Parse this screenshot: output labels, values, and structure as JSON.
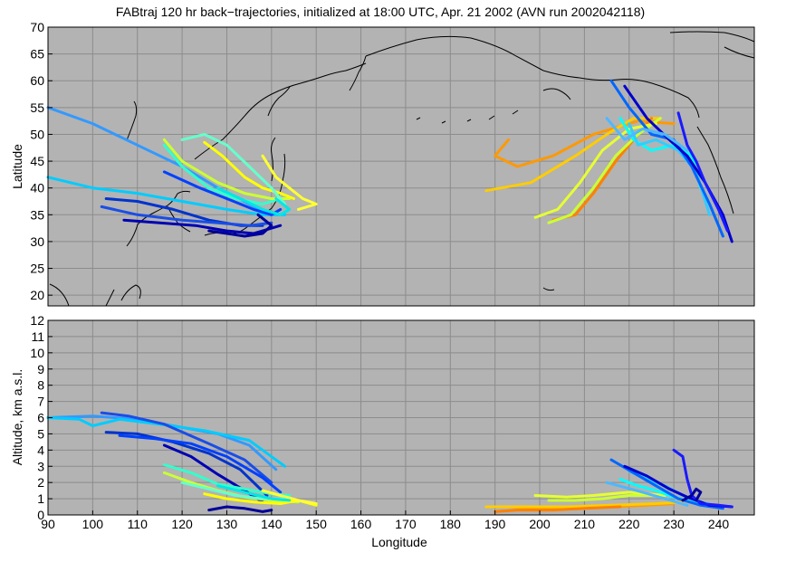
{
  "chart_data": [
    {
      "type": "line",
      "panel": "map",
      "title": "FABtraj 120 hr back−trajectories, initialized at 18:00 UTC, Apr. 21 2002 (AVN run 2002042118)",
      "xlabel": "",
      "ylabel": "Latitude",
      "xlim": [
        90,
        240
      ],
      "ylim": [
        18,
        70
      ],
      "xticks": [
        90,
        100,
        110,
        120,
        130,
        140,
        150,
        160,
        170,
        180,
        190,
        200,
        210,
        220,
        230,
        240
      ],
      "yticks": [
        20,
        25,
        30,
        35,
        40,
        45,
        50,
        55,
        60,
        65,
        70
      ],
      "ytick_labels": [
        "20",
        "25",
        "30",
        "35",
        "40",
        "45",
        "50",
        "55",
        "60",
        "65",
        "70"
      ],
      "grid": true,
      "background": "#b3b3b3",
      "series": [
        {
          "color": "#3399ff",
          "x": [
            90,
            100,
            110,
            120,
            128,
            135,
            140
          ],
          "y": [
            55,
            52,
            48,
            44,
            40,
            37,
            35
          ]
        },
        {
          "color": "#00ccff",
          "x": [
            90,
            100,
            110,
            120,
            130,
            138,
            143
          ],
          "y": [
            42,
            40,
            39,
            37.5,
            36,
            35,
            35
          ]
        },
        {
          "color": "#0033cc",
          "x": [
            103,
            110,
            118,
            126,
            133,
            138
          ],
          "y": [
            38,
            37.5,
            36,
            34,
            33,
            33
          ]
        },
        {
          "color": "#1a4de6",
          "x": [
            102,
            110,
            120,
            128,
            135,
            140
          ],
          "y": [
            36.5,
            35,
            34,
            33.5,
            33,
            33.5
          ]
        },
        {
          "color": "#0000b3",
          "x": [
            107,
            115,
            123,
            130,
            136,
            142
          ],
          "y": [
            34,
            33.5,
            33,
            32,
            31.5,
            33
          ]
        },
        {
          "color": "#000099",
          "x": [
            126,
            130,
            134,
            138,
            140,
            137
          ],
          "y": [
            32,
            31.5,
            31,
            31.5,
            33,
            35
          ]
        },
        {
          "color": "#0040ff",
          "x": [
            116,
            124,
            130,
            136,
            140,
            142
          ],
          "y": [
            43,
            40,
            38,
            36,
            35,
            36
          ]
        },
        {
          "color": "#33ffcc",
          "x": [
            116,
            120,
            126,
            132,
            138,
            142
          ],
          "y": [
            48,
            44,
            40,
            38,
            37,
            38
          ]
        },
        {
          "color": "#ccff33",
          "x": [
            116,
            120,
            128,
            134,
            140,
            144
          ],
          "y": [
            49,
            45,
            41,
            39,
            38,
            38
          ]
        },
        {
          "color": "#ffff00",
          "x": [
            125,
            129,
            134,
            138,
            142,
            145
          ],
          "y": [
            48.5,
            46,
            42,
            40,
            39,
            38
          ]
        },
        {
          "color": "#ffff33",
          "x": [
            138,
            141,
            144,
            147,
            150,
            146
          ],
          "y": [
            46,
            42,
            40,
            38,
            37,
            36
          ]
        },
        {
          "color": "#66ffcc",
          "x": [
            120,
            125,
            130,
            135,
            140,
            143
          ],
          "y": [
            49,
            50,
            48,
            44,
            40,
            37
          ]
        },
        {
          "color": "#00e6e6",
          "x": [
            128,
            133,
            138,
            142,
            144,
            141
          ],
          "y": [
            40,
            38,
            36,
            35,
            36,
            38
          ]
        },
        {
          "color": "#ff9900",
          "x": [
            193,
            190,
            195,
            203,
            212,
            222,
            230
          ],
          "y": [
            49,
            46,
            44,
            46,
            50,
            52.5,
            52
          ]
        },
        {
          "color": "#ffcc00",
          "x": [
            188,
            198,
            208,
            215,
            221,
            227
          ],
          "y": [
            39.5,
            41,
            46,
            50,
            53,
            53
          ]
        },
        {
          "color": "#ff8000",
          "x": [
            203,
            208,
            212,
            217,
            222,
            225
          ],
          "y": [
            34,
            35,
            39,
            45,
            50,
            53
          ]
        },
        {
          "color": "#ccff33",
          "x": [
            202,
            207,
            212,
            217,
            222,
            227
          ],
          "y": [
            33.5,
            35,
            40,
            46,
            50,
            53
          ]
        },
        {
          "color": "#e6ff33",
          "x": [
            199,
            204,
            209,
            214,
            220,
            226
          ],
          "y": [
            34.5,
            36,
            41,
            47,
            51,
            52
          ]
        },
        {
          "color": "#00ffff",
          "x": [
            218,
            221,
            225,
            230,
            234,
            236
          ],
          "y": [
            53,
            49,
            47,
            48,
            46,
            40
          ]
        },
        {
          "color": "#33ccff",
          "x": [
            220,
            222,
            226,
            231,
            235,
            238
          ],
          "y": [
            52,
            48,
            49,
            47,
            43,
            35
          ]
        },
        {
          "color": "#0066ff",
          "x": [
            216,
            220,
            225,
            230,
            234,
            238,
            241
          ],
          "y": [
            60,
            55,
            50,
            49,
            44,
            37,
            31
          ]
        },
        {
          "color": "#0000cc",
          "x": [
            219,
            224,
            229,
            233,
            237,
            241,
            243
          ],
          "y": [
            59,
            53,
            49,
            46,
            41,
            35,
            30
          ]
        },
        {
          "color": "#1a1aff",
          "x": [
            231,
            233,
            235,
            237,
            240,
            242
          ],
          "y": [
            54,
            48,
            45,
            41,
            36,
            32
          ]
        },
        {
          "color": "#4db8ff",
          "x": [
            215,
            219,
            223,
            228,
            233
          ],
          "y": [
            53,
            49,
            51,
            50,
            47
          ]
        }
      ]
    },
    {
      "type": "line",
      "panel": "altitude",
      "title": "",
      "xlabel": "Longitude",
      "ylabel": "Altitude, km a.s.l.",
      "xlim": [
        90,
        248
      ],
      "ylim": [
        0,
        12
      ],
      "xticks": [
        90,
        100,
        110,
        120,
        130,
        140,
        150,
        160,
        170,
        180,
        190,
        200,
        210,
        220,
        230,
        240
      ],
      "xtick_labels": [
        "90",
        "100",
        "110",
        "120",
        "130",
        "140",
        "150",
        "160",
        "170",
        "180",
        "190",
        "200",
        "210",
        "220",
        "230",
        "240"
      ],
      "yticks": [
        0,
        1,
        2,
        3,
        4,
        5,
        6,
        7,
        8,
        9,
        10,
        11,
        12
      ],
      "ytick_labels": [
        "0",
        "1",
        "2",
        "3",
        "4",
        "5",
        "6",
        "7",
        "8",
        "9",
        "10",
        "11",
        "12"
      ],
      "grid": true,
      "background": "#b3b3b3",
      "series": [
        {
          "color": "#3399ff",
          "x": [
            90,
            100,
            110,
            120,
            128,
            135,
            141
          ],
          "y": [
            6.0,
            6.1,
            5.9,
            5.4,
            5.0,
            4.3,
            2.8
          ]
        },
        {
          "color": "#00ccff",
          "x": [
            90,
            97,
            100,
            106,
            115,
            125,
            135,
            143
          ],
          "y": [
            6.0,
            5.9,
            5.5,
            5.9,
            5.6,
            5.2,
            4.6,
            3.0
          ]
        },
        {
          "color": "#1a4de6",
          "x": [
            102,
            108,
            116,
            126,
            134,
            140
          ],
          "y": [
            6.3,
            6.1,
            5.6,
            4.4,
            3.4,
            2.0
          ]
        },
        {
          "color": "#0033cc",
          "x": [
            103,
            110,
            118,
            126,
            133,
            139
          ],
          "y": [
            5.1,
            5.0,
            4.5,
            3.8,
            2.8,
            1.2
          ]
        },
        {
          "color": "#0040ff",
          "x": [
            106,
            114,
            122,
            130,
            138,
            142
          ],
          "y": [
            4.9,
            4.7,
            4.4,
            3.6,
            2.3,
            1.4
          ]
        },
        {
          "color": "#0000b3",
          "x": [
            116,
            122,
            128,
            134,
            138
          ],
          "y": [
            4.3,
            3.6,
            2.5,
            1.5,
            0.8
          ]
        },
        {
          "color": "#000099",
          "x": [
            126,
            130,
            134,
            138,
            140
          ],
          "y": [
            0.3,
            0.5,
            0.4,
            0.2,
            0.3
          ]
        },
        {
          "color": "#33ffcc",
          "x": [
            116,
            122,
            128,
            134,
            140,
            144
          ],
          "y": [
            3.1,
            2.6,
            1.9,
            1.6,
            1.3,
            1.2
          ]
        },
        {
          "color": "#ccff33",
          "x": [
            116,
            122,
            128,
            134,
            140,
            146
          ],
          "y": [
            2.6,
            2.0,
            1.5,
            1.1,
            0.9,
            0.8
          ]
        },
        {
          "color": "#ffff00",
          "x": [
            125,
            130,
            136,
            142,
            146,
            150
          ],
          "y": [
            1.3,
            1.0,
            0.8,
            0.7,
            0.9,
            0.6
          ]
        },
        {
          "color": "#ffff33",
          "x": [
            138,
            142,
            146,
            150
          ],
          "y": [
            1.5,
            1.2,
            0.9,
            0.7
          ]
        },
        {
          "color": "#66ffcc",
          "x": [
            120,
            126,
            132,
            138,
            143
          ],
          "y": [
            2.0,
            1.6,
            1.2,
            1.0,
            1.0
          ]
        },
        {
          "color": "#00e6e6",
          "x": [
            128,
            134,
            140,
            144
          ],
          "y": [
            1.8,
            1.4,
            1.0,
            0.9
          ]
        },
        {
          "color": "#ff9900",
          "x": [
            193,
            200,
            208,
            216,
            224,
            230
          ],
          "y": [
            0.5,
            0.4,
            0.4,
            0.5,
            0.6,
            0.7
          ]
        },
        {
          "color": "#ffcc00",
          "x": [
            188,
            196,
            206,
            216,
            226,
            232
          ],
          "y": [
            0.5,
            0.5,
            0.5,
            0.6,
            0.7,
            0.8
          ]
        },
        {
          "color": "#ff8000",
          "x": [
            190,
            195,
            203,
            210,
            218
          ],
          "y": [
            0.2,
            0.3,
            0.3,
            0.4,
            0.5
          ]
        },
        {
          "color": "#ccff33",
          "x": [
            202,
            208,
            214,
            220,
            226
          ],
          "y": [
            0.9,
            0.9,
            1.0,
            1.2,
            1.2
          ]
        },
        {
          "color": "#e6ff33",
          "x": [
            199,
            206,
            212,
            220,
            228
          ],
          "y": [
            1.2,
            1.1,
            1.2,
            1.4,
            1.2
          ]
        },
        {
          "color": "#00ffff",
          "x": [
            218,
            222,
            226,
            230,
            234,
            236
          ],
          "y": [
            2.2,
            1.8,
            1.5,
            1.1,
            0.8,
            0.6
          ]
        },
        {
          "color": "#33ccff",
          "x": [
            220,
            224,
            228,
            232,
            236,
            240
          ],
          "y": [
            2.7,
            2.2,
            1.8,
            1.2,
            0.8,
            0.5
          ]
        },
        {
          "color": "#0066ff",
          "x": [
            216,
            221,
            226,
            231,
            236,
            241
          ],
          "y": [
            3.4,
            2.6,
            1.8,
            1.0,
            0.6,
            0.4
          ]
        },
        {
          "color": "#0000cc",
          "x": [
            219,
            224,
            229,
            233,
            238,
            243
          ],
          "y": [
            3.0,
            2.4,
            1.6,
            1.1,
            0.6,
            0.5
          ]
        },
        {
          "color": "#1a1aff",
          "x": [
            230,
            232,
            233,
            234,
            236,
            240,
            243
          ],
          "y": [
            4.0,
            3.6,
            2.2,
            1.2,
            0.7,
            0.6,
            0.5
          ]
        },
        {
          "color": "#000099",
          "x": [
            232,
            234,
            235,
            236,
            235
          ],
          "y": [
            0.9,
            1.2,
            1.6,
            1.4,
            0.9
          ]
        },
        {
          "color": "#4db8ff",
          "x": [
            215,
            219,
            223,
            228,
            233
          ],
          "y": [
            2.0,
            1.7,
            1.4,
            1.0,
            0.6
          ]
        }
      ]
    }
  ]
}
